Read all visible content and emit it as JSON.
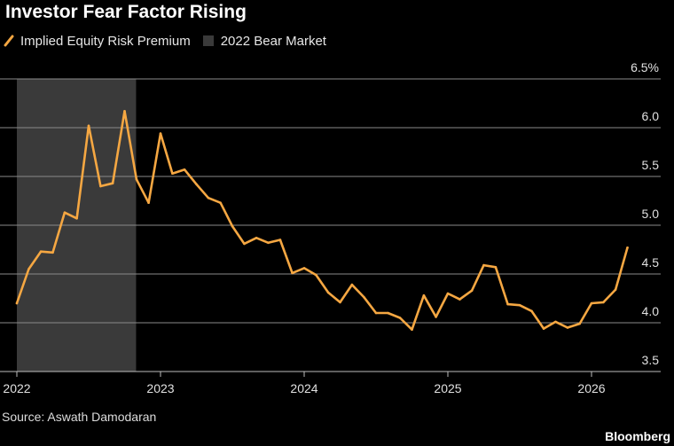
{
  "chart_data": {
    "type": "line",
    "title": "Investor Fear Factor Rising",
    "legend": [
      {
        "name": "Implied Equity Risk Premium",
        "marker": "line",
        "color": "#f5a742"
      },
      {
        "name": "2022 Bear Market",
        "marker": "box",
        "color": "#3a3a3a"
      }
    ],
    "xlabel": "",
    "ylabel": "",
    "x_ticks": [
      "2022",
      "2023",
      "2024",
      "2025",
      "2026"
    ],
    "y_ticks": [
      "3.5",
      "4.0",
      "4.5",
      "5.0",
      "5.5",
      "6.0",
      "6.5%"
    ],
    "y_tick_values": [
      3.5,
      4.0,
      4.5,
      5.0,
      5.5,
      6.0,
      6.5
    ],
    "xlim": [
      2022.0,
      2026.45
    ],
    "ylim": [
      3.5,
      6.5
    ],
    "shaded_region": {
      "name": "2022 Bear Market",
      "start": 2022.0,
      "end": 2022.83
    },
    "series": [
      {
        "name": "Implied Equity Risk Premium",
        "color": "#f5a742",
        "x": [
          2022.0,
          2022.083,
          2022.167,
          2022.25,
          2022.333,
          2022.417,
          2022.5,
          2022.583,
          2022.667,
          2022.75,
          2022.833,
          2022.917,
          2023.0,
          2023.083,
          2023.167,
          2023.25,
          2023.333,
          2023.417,
          2023.5,
          2023.583,
          2023.667,
          2023.75,
          2023.833,
          2023.917,
          2024.0,
          2024.083,
          2024.167,
          2024.25,
          2024.333,
          2024.417,
          2024.5,
          2024.583,
          2024.667,
          2024.75,
          2024.833,
          2024.917,
          2025.0,
          2025.083,
          2025.167,
          2025.25,
          2025.333,
          2025.417,
          2025.5,
          2025.583,
          2025.667,
          2025.75,
          2025.833,
          2025.917,
          2026.0,
          2026.083,
          2026.167,
          2026.25
        ],
        "values": [
          4.2,
          4.55,
          4.73,
          4.72,
          5.13,
          5.07,
          6.02,
          5.4,
          5.43,
          6.17,
          5.47,
          5.23,
          5.94,
          5.53,
          5.57,
          5.42,
          5.28,
          5.23,
          4.99,
          4.81,
          4.87,
          4.82,
          4.85,
          4.51,
          4.56,
          4.49,
          4.31,
          4.21,
          4.39,
          4.26,
          4.1,
          4.1,
          4.05,
          3.93,
          4.28,
          4.06,
          4.3,
          4.24,
          4.33,
          4.59,
          4.57,
          4.19,
          4.18,
          4.12,
          3.94,
          4.01,
          3.95,
          3.99,
          4.2,
          4.21,
          4.34,
          4.77
        ]
      }
    ]
  },
  "source": "Source: Aswath Damodaran",
  "brand": "Bloomberg"
}
